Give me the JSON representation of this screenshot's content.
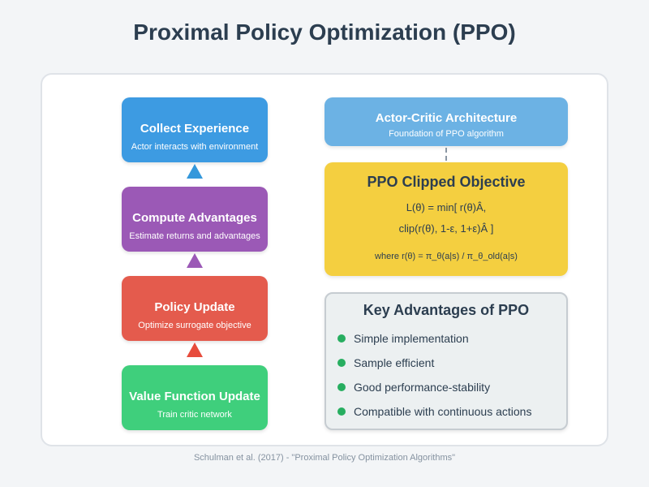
{
  "title": "Proximal Policy Optimization (PPO)",
  "steps": [
    {
      "title": "Collect Experience",
      "subtitle": "Actor interacts with environment",
      "color": "#3d9be2"
    },
    {
      "title": "Compute Advantages",
      "subtitle": "Estimate returns and advantages",
      "color": "#9b59b6"
    },
    {
      "title": "Policy Update",
      "subtitle": "Optimize surrogate objective",
      "color": "#e45b4d"
    },
    {
      "title": "Value Function Update",
      "subtitle": "Train critic network",
      "color": "#3fcf7c"
    }
  ],
  "arrow_colors": [
    "#3498db",
    "#9b59b6",
    "#e74c3c"
  ],
  "actor_critic": {
    "title": "Actor-Critic Architecture",
    "subtitle": "Foundation of PPO algorithm"
  },
  "clipped_objective": {
    "title": "PPO Clipped Objective",
    "formula_line1": "L(θ) = min[ r(θ)Â,",
    "formula_line2": "clip(r(θ), 1-ε, 1+ε)Â ]",
    "note": "where r(θ) = π_θ(a|s) / π_θ_old(a|s)"
  },
  "advantages": {
    "title": "Key Advantages of PPO",
    "items": [
      "Simple implementation",
      "Sample efficient",
      "Good performance-stability",
      "Compatible with continuous actions"
    ]
  },
  "footer": "Schulman et al. (2017) - \"Proximal Policy Optimization Algorithms\""
}
